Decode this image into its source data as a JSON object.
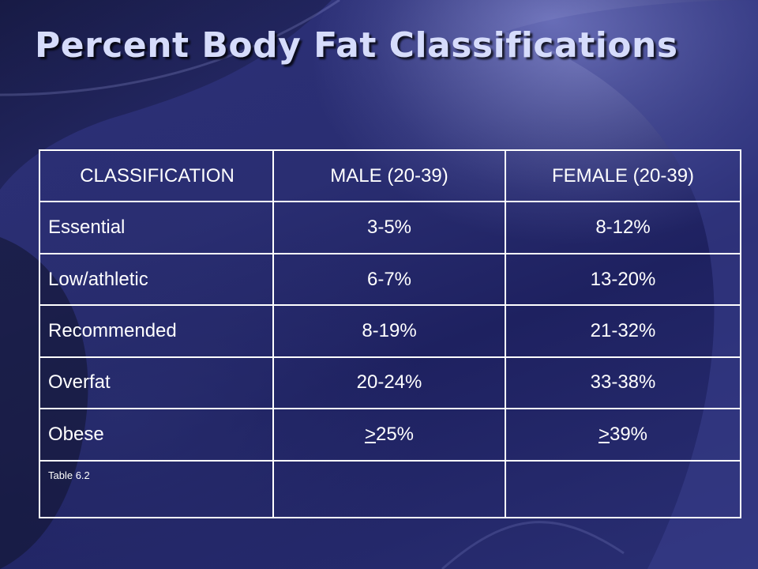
{
  "slide": {
    "title": "Percent Body Fat Classifications"
  },
  "table": {
    "headers": [
      "CLASSIFICATION",
      "MALE (20-39)",
      "FEMALE (20-39)"
    ],
    "rows": [
      {
        "classification": "Essential",
        "male": "3-5%",
        "female": "8-12%"
      },
      {
        "classification": "Low/athletic",
        "male": "6-7%",
        "female": "13-20%"
      },
      {
        "classification": "Recommended",
        "male": "8-19%",
        "female": "21-32%"
      },
      {
        "classification": "Overfat",
        "male": "20-24%",
        "female": "33-38%"
      },
      {
        "classification": "Obese",
        "male_symbol": ">",
        "male_value": "25%",
        "female_symbol": ">",
        "female_value": "39%"
      }
    ],
    "note": "Table 6.2"
  },
  "colors": {
    "background": "#2a2e72",
    "title": "#d6dcfb",
    "text": "#ffffff",
    "border": "#ffffff"
  }
}
